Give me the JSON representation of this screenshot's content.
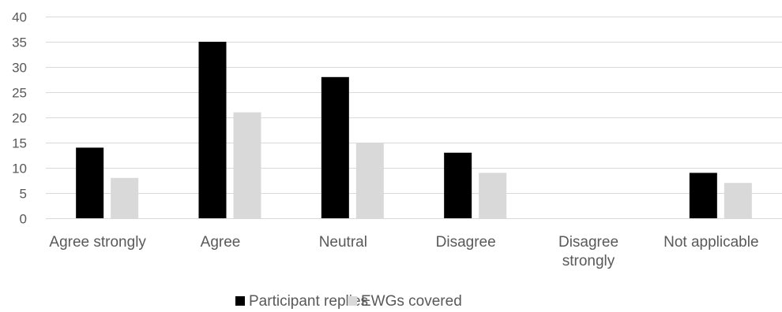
{
  "chart_data": {
    "type": "bar",
    "categories": [
      [
        "Agree strongly"
      ],
      [
        "Agree"
      ],
      [
        "Neutral"
      ],
      [
        "Disagree"
      ],
      [
        "Disagree",
        "strongly"
      ],
      [
        "Not applicable"
      ]
    ],
    "series": [
      {
        "name": "Participant replies",
        "values": [
          14,
          35,
          28,
          13,
          0,
          9
        ],
        "color": "#000000"
      },
      {
        "name": "EWGs covered",
        "values": [
          8,
          21,
          15,
          9,
          0,
          7
        ],
        "color": "#d9d9d9"
      }
    ],
    "ylim": [
      0,
      40
    ],
    "yticks": [
      0,
      5,
      10,
      15,
      20,
      25,
      30,
      35,
      40
    ],
    "grid": true,
    "legend": "bottom",
    "gridcolor": "#d9d9d9",
    "textcolor": "#595959"
  }
}
